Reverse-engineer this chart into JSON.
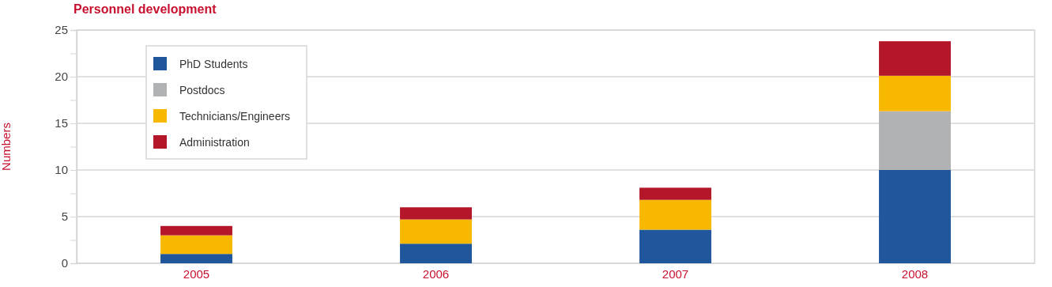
{
  "chart_data": {
    "type": "bar",
    "title": "Personnel development",
    "ylabel": "Numbers",
    "categories": [
      "2005",
      "2006",
      "2007",
      "2008"
    ],
    "series": [
      {
        "name": "PhD Students",
        "color": "#20569c",
        "values": [
          1,
          2.1,
          3.6,
          10
        ]
      },
      {
        "name": "Postdocs",
        "color": "#b1b2b3",
        "values": [
          0,
          0,
          0,
          6.3
        ]
      },
      {
        "name": "Technicians/Engineers",
        "color": "#f9b800",
        "values": [
          2,
          2.6,
          3.2,
          3.8
        ]
      },
      {
        "name": "Administration",
        "color": "#b31729",
        "values": [
          1,
          1.3,
          1.3,
          3.7
        ]
      }
    ],
    "stacked": true,
    "ylim": [
      0,
      25
    ],
    "yticks": [
      0,
      {
        "value": 2.5,
        "label": null
      },
      5,
      {
        "value": 7.5,
        "label": null
      },
      10,
      {
        "value": 12.5,
        "label": null
      },
      15,
      {
        "value": 17.5,
        "label": null
      },
      20,
      {
        "value": 22.5,
        "label": null
      },
      25
    ],
    "grid": "y",
    "legend": "top left"
  }
}
